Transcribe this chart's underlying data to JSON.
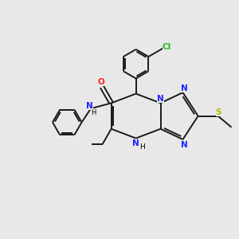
{
  "background_color": "#e8e8e8",
  "bond_color": "#1a1a1a",
  "N_color": "#2020ff",
  "O_color": "#ff2020",
  "S_color": "#b8b800",
  "Cl_color": "#22bb22",
  "figsize": [
    3.0,
    3.0
  ],
  "dpi": 100,
  "xlim": [
    0,
    10
  ],
  "ylim": [
    0,
    10
  ]
}
